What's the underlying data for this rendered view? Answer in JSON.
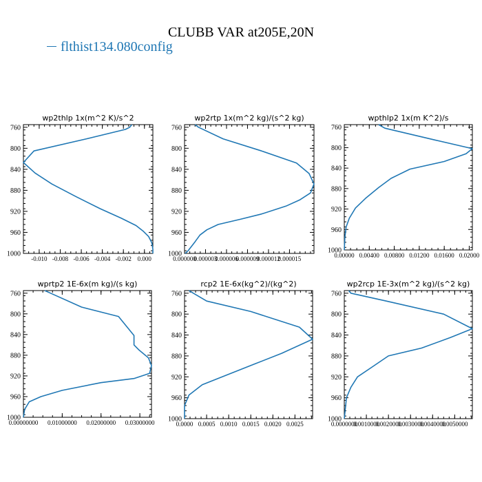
{
  "figure": {
    "title": "CLUBB VAR at205E,20N",
    "legend_label": "flthist134.080config",
    "line_color": "#1f77b4"
  },
  "chart_data": [
    {
      "type": "line",
      "title": "wp2thlp   1x(m^2 K)/s^2",
      "xlim": [
        -0.0115,
        0.0008
      ],
      "ylim": [
        1000,
        755
      ],
      "xticks": [
        -0.01,
        -0.008,
        -0.006,
        -0.004,
        -0.002,
        0.0
      ],
      "xtick_labels": [
        "-0.010",
        "-0.008",
        "-0.006",
        "-0.004",
        "-0.002",
        "0.000"
      ],
      "yticks": [
        760,
        800,
        840,
        880,
        920,
        960,
        1000
      ],
      "series": [
        {
          "x": [
            -0.0012,
            -0.0014,
            -0.0018,
            -0.0055,
            -0.0105,
            -0.0115,
            -0.0104,
            -0.0088,
            -0.0065,
            -0.0042,
            -0.0022,
            -0.0008,
            -0.0001,
            0.0004,
            0.0007,
            0.0008,
            0.0008
          ],
          "y": [
            755,
            760,
            764,
            782,
            805,
            827,
            847,
            868,
            892,
            915,
            933,
            947,
            958,
            968,
            980,
            992,
            1000
          ]
        }
      ]
    },
    {
      "type": "line",
      "title": "wp2rtp   1x(m^2 kg)/(s^2 kg)",
      "xlim": [
        0,
        1.85e-05
      ],
      "ylim": [
        1000,
        755
      ],
      "xticks": [
        0,
        3e-06,
        6e-06,
        9e-06,
        1.2e-05,
        1.5e-05
      ],
      "xtick_labels": [
        "0.000000",
        "0.000003",
        "0.000006",
        "0.000009",
        "0.000012",
        "0.000015"
      ],
      "yticks": [
        760,
        800,
        840,
        880,
        920,
        960,
        1000
      ],
      "series": [
        {
          "x": [
            1.5e-06,
            2e-06,
            5.5e-06,
            1.1e-05,
            1.6e-05,
            1.78e-05,
            1.85e-05,
            1.8e-05,
            1.65e-05,
            1.45e-05,
            1.1e-05,
            8e-06,
            4.8e-06,
            3.2e-06,
            2.2e-06,
            1.5e-06,
            5e-07,
            1e-07
          ],
          "y": [
            755,
            760,
            782,
            805,
            828,
            848,
            868,
            885,
            898,
            910,
            925,
            935,
            945,
            955,
            965,
            978,
            995,
            1000
          ]
        }
      ]
    },
    {
      "type": "line",
      "title": "wpthlp2   1x(m K^2)/s",
      "xlim": [
        0,
        0.0205
      ],
      "ylim": [
        1000,
        755
      ],
      "xticks": [
        0,
        0.004,
        0.008,
        0.012,
        0.016,
        0.02
      ],
      "xtick_labels": [
        "0.00000",
        "0.00400",
        "0.00800",
        "0.01200",
        "0.01600",
        "0.02000"
      ],
      "yticks": [
        760,
        800,
        840,
        880,
        920,
        960,
        1000
      ],
      "series": [
        {
          "x": [
            0.0055,
            0.0065,
            0.0145,
            0.0205,
            0.0195,
            0.016,
            0.0105,
            0.0075,
            0.0055,
            0.0035,
            0.0018,
            0.0008,
            0.0003,
            0.0001,
            0.0
          ],
          "y": [
            755,
            762,
            785,
            802,
            812,
            827,
            842,
            860,
            878,
            898,
            918,
            938,
            955,
            975,
            1000
          ]
        }
      ]
    },
    {
      "type": "line",
      "title": "wprtp2   1E-6x(m kg)/(s kg)",
      "xlim": [
        0,
        0.033
      ],
      "ylim": [
        1000,
        755
      ],
      "xticks": [
        0,
        0.01,
        0.02,
        0.03
      ],
      "xtick_labels": [
        "0.00000000",
        "0.01000000",
        "0.02000000",
        "0.03000000"
      ],
      "yticks": [
        760,
        800,
        840,
        880,
        920,
        960,
        1000
      ],
      "series": [
        {
          "x": [
            0.0055,
            0.007,
            0.015,
            0.0245,
            0.0285,
            0.0285,
            0.0298,
            0.0322,
            0.033,
            0.0325,
            0.0285,
            0.02,
            0.01,
            0.0045,
            0.0015,
            0.0003,
            0.0
          ],
          "y": [
            755,
            760,
            787,
            805,
            842,
            860,
            870,
            885,
            900,
            915,
            925,
            933,
            948,
            960,
            970,
            985,
            1000
          ]
        }
      ]
    },
    {
      "type": "line",
      "title": "rcp2   1E-6x(kg^2)/(kg^2)",
      "xlim": [
        0,
        0.0029
      ],
      "ylim": [
        1000,
        755
      ],
      "xticks": [
        0,
        0.0005,
        0.001,
        0.0015,
        0.002,
        0.0025
      ],
      "xtick_labels": [
        "0.0000",
        "0.0005",
        "0.0010",
        "0.0015",
        "0.0020",
        "0.0025"
      ],
      "yticks": [
        760,
        800,
        840,
        880,
        920,
        960,
        1000
      ],
      "series": [
        {
          "x": [
            0.0001,
            0.0002,
            0.0005,
            0.0015,
            0.0026,
            0.0029,
            0.0022,
            0.0016,
            0.001,
            0.0004,
            0.0001,
            0.0,
            0.0
          ],
          "y": [
            755,
            760,
            775,
            795,
            825,
            848,
            875,
            895,
            915,
            935,
            955,
            975,
            1000
          ]
        }
      ]
    },
    {
      "type": "line",
      "title": "wp2rcp   1E-3x(m^2 kg)/(s^2 kg)",
      "xlim": [
        0,
        0.0058
      ],
      "ylim": [
        1000,
        755
      ],
      "xticks": [
        0,
        0.001,
        0.002,
        0.003,
        0.004,
        0.005
      ],
      "xtick_labels": [
        "0.0000000",
        "0.0010000",
        "0.0020000",
        "0.0030000",
        "0.0040000",
        "0.0050000"
      ],
      "yticks": [
        760,
        800,
        840,
        880,
        920,
        960,
        1000
      ],
      "series": [
        {
          "x": [
            0.0002,
            0.0003,
            0.0019,
            0.0045,
            0.0058,
            0.0048,
            0.0035,
            0.002,
            0.0013,
            0.0006,
            0.0003,
            0.0001,
            0.0
          ],
          "y": [
            755,
            760,
            775,
            800,
            828,
            845,
            865,
            880,
            900,
            920,
            940,
            960,
            1000
          ]
        }
      ]
    }
  ]
}
